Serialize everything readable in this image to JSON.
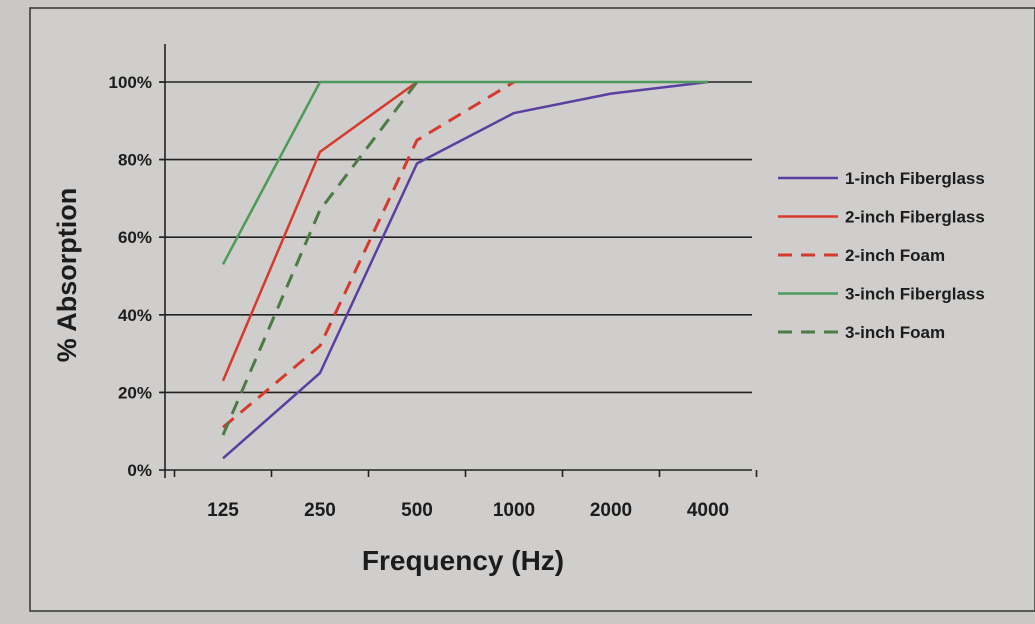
{
  "chart_data": {
    "type": "line",
    "xlabel": "Frequency (Hz)",
    "ylabel": "% Absorption",
    "categories": [
      "125",
      "250",
      "500",
      "1000",
      "2000",
      "4000"
    ],
    "yticks": [
      "0%",
      "20%",
      "40%",
      "60%",
      "80%",
      "100%"
    ],
    "ylim": [
      0,
      100
    ],
    "grid": true,
    "legend_position": "right",
    "series": [
      {
        "name": "1-inch Fiberglass",
        "values": [
          3,
          25,
          79,
          92,
          97,
          100
        ],
        "color": "#5b3fa0",
        "dashed": false
      },
      {
        "name": "2-inch Fiberglass",
        "values": [
          23,
          82,
          100,
          null,
          null,
          null
        ],
        "color": "#d63a2e",
        "dashed": false
      },
      {
        "name": "2-inch Foam",
        "values": [
          11,
          32,
          85,
          100,
          null,
          null
        ],
        "color": "#d63a2e",
        "dashed": true
      },
      {
        "name": "3-inch Fiberglass",
        "values": [
          53,
          100,
          100,
          100,
          100,
          100
        ],
        "color": "#4e9a5a",
        "dashed": false
      },
      {
        "name": "3-inch Foam",
        "values": [
          9,
          67,
          100,
          null,
          null,
          null
        ],
        "color": "#4d7a45",
        "dashed": true
      }
    ]
  }
}
